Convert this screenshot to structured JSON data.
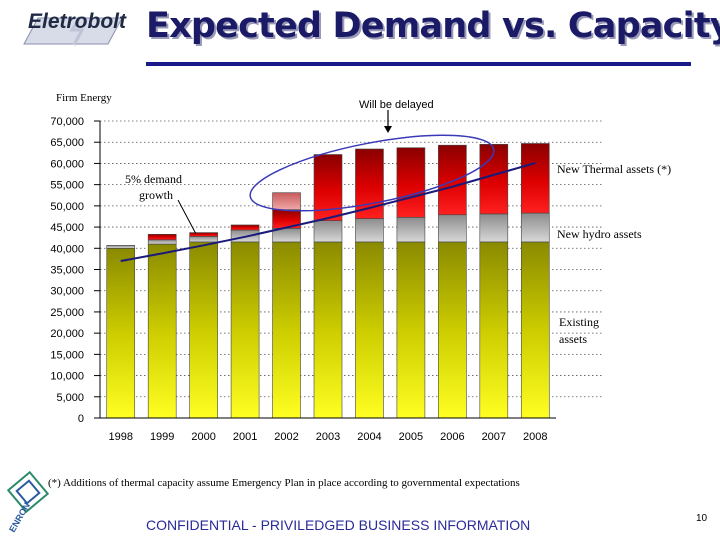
{
  "header": {
    "logo_text": "Eletrobolt",
    "title": "Expected Demand vs. Capacity"
  },
  "chart_data": {
    "type": "bar",
    "stacked": true,
    "title": "Expected Demand vs. Capacity",
    "ylabel": "Firm Energy",
    "xlabel": "",
    "ylim": [
      0,
      70000
    ],
    "yticks": [
      "0",
      "5,000",
      "10,000",
      "15,000",
      "20,000",
      "25,000",
      "30,000",
      "35,000",
      "40,000",
      "45,000",
      "50,000",
      "55,000",
      "60,000",
      "65,000",
      "70,000"
    ],
    "grid": true,
    "categories": [
      "1998",
      "1999",
      "2000",
      "2001",
      "2002",
      "2003",
      "2004",
      "2005",
      "2006",
      "2007",
      "2008"
    ],
    "series": [
      {
        "name": "Existing assets",
        "color": "#8a8a00",
        "values": [
          40000,
          41000,
          41500,
          41500,
          41500,
          41500,
          41500,
          41500,
          41500,
          41500,
          41500
        ]
      },
      {
        "name": "New hydro assets",
        "color": "#9a9a9a",
        "values": [
          700,
          1000,
          1300,
          2800,
          3200,
          5000,
          5500,
          5800,
          6400,
          6600,
          6800
        ]
      },
      {
        "name": "New Thermal assets (*)",
        "color": "#dd0000",
        "values": [
          0,
          1300,
          900,
          1200,
          4400,
          15600,
          16400,
          16400,
          16400,
          16400,
          16400
        ]
      },
      {
        "name": "Will be delayed",
        "color": "#e88a8a",
        "values": [
          0,
          0,
          0,
          0,
          4000,
          0,
          0,
          0,
          0,
          0,
          0
        ]
      }
    ],
    "demand_line": {
      "name": "5% demand growth",
      "values": [
        37000,
        38800,
        40700,
        42700,
        44900,
        47100,
        49500,
        52000,
        54500,
        57300,
        60100
      ]
    },
    "annotations": {
      "firm_energy": "Firm Energy",
      "will_be_delayed": "Will be delayed",
      "new_thermal": "New Thermal assets  (*)",
      "new_hydro": "New hydro assets",
      "existing_line1": "Existing",
      "existing_line2": "assets",
      "demand_line1": "5% demand",
      "demand_line2": "growth"
    }
  },
  "footer": {
    "footnote": "(*) Additions of thermal capacity assume Emergency Plan in place according to governmental expectations",
    "confidential": "CONFIDENTIAL - PRIVILEDGED BUSINESS INFORMATION",
    "page_number": "10",
    "logo_text": "ENRON"
  },
  "colors": {
    "title": "#1a1a66",
    "title_bar": "#1a1a8c",
    "existing": "#8a8a00",
    "hydro": "#9a9a9a",
    "thermal": "#dd0000",
    "delayed": "#e88a8a",
    "demand_line": "#1a1a7a",
    "ellipse": "#3a3ab8"
  }
}
